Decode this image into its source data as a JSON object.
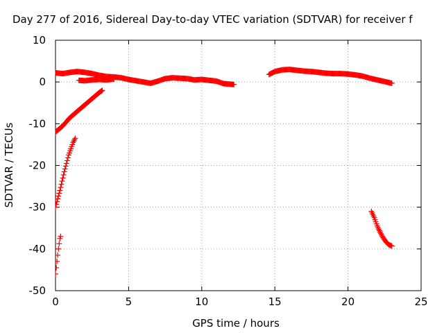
{
  "chart_data": {
    "type": "scatter",
    "title": "Day 277 of 2016, Sidereal Day-to-day VTEC variation (SDTVAR) for receiver f",
    "xlabel": "GPS time / hours",
    "ylabel": "SDTVAR / TECUs",
    "xlim": [
      0,
      25
    ],
    "ylim": [
      -50,
      10
    ],
    "xticks": [
      0,
      5,
      10,
      15,
      20,
      25
    ],
    "yticks": [
      -50,
      -40,
      -30,
      -20,
      -10,
      0,
      10
    ],
    "grid": true,
    "marker": "plus",
    "color": "#ff0000",
    "series": [
      {
        "segments": [
          [
            [
              0.0,
              2.2
            ],
            [
              0.5,
              2.0
            ],
            [
              1.0,
              2.3
            ],
            [
              1.5,
              2.5
            ],
            [
              2.0,
              2.3
            ],
            [
              2.5,
              2.0
            ],
            [
              3.0,
              1.6
            ],
            [
              3.5,
              1.3
            ],
            [
              4.0,
              1.2
            ],
            [
              4.5,
              1.0
            ],
            [
              5.0,
              0.6
            ],
            [
              5.5,
              0.3
            ],
            [
              6.0,
              0.0
            ],
            [
              6.5,
              -0.3
            ],
            [
              7.0,
              0.2
            ],
            [
              7.5,
              0.8
            ],
            [
              8.0,
              1.0
            ],
            [
              8.5,
              0.9
            ],
            [
              9.0,
              0.8
            ],
            [
              9.5,
              0.5
            ],
            [
              10.0,
              0.6
            ],
            [
              10.5,
              0.4
            ],
            [
              11.0,
              0.2
            ],
            [
              11.5,
              -0.4
            ],
            [
              12.2,
              -0.6
            ]
          ],
          [
            [
              1.6,
              0.4
            ],
            [
              2.0,
              0.3
            ],
            [
              2.5,
              0.5
            ],
            [
              3.0,
              0.6
            ],
            [
              3.5,
              0.5
            ],
            [
              4.0,
              0.7
            ]
          ],
          [
            [
              0.0,
              -12.0
            ],
            [
              0.5,
              -10.5
            ],
            [
              1.0,
              -8.5
            ],
            [
              1.5,
              -7.0
            ],
            [
              2.0,
              -5.5
            ],
            [
              2.5,
              -4.0
            ],
            [
              3.0,
              -2.5
            ],
            [
              3.2,
              -2.0
            ]
          ],
          [
            [
              0.0,
              -30.0
            ],
            [
              0.3,
              -26.0
            ],
            [
              0.6,
              -21.5
            ],
            [
              0.9,
              -17.5
            ],
            [
              1.2,
              -14.5
            ],
            [
              1.35,
              -13.5
            ]
          ],
          [
            [
              0.0,
              -46.0
            ],
            [
              0.1,
              -43.0
            ],
            [
              0.2,
              -40.0
            ],
            [
              0.3,
              -37.5
            ],
            [
              0.35,
              -37.0
            ]
          ],
          [
            [
              14.6,
              1.8
            ],
            [
              15.0,
              2.5
            ],
            [
              15.5,
              2.9
            ],
            [
              16.0,
              3.0
            ],
            [
              16.5,
              2.8
            ],
            [
              17.0,
              2.6
            ],
            [
              17.5,
              2.5
            ],
            [
              18.0,
              2.3
            ],
            [
              18.5,
              2.1
            ],
            [
              19.0,
              2.0
            ],
            [
              19.5,
              2.0
            ],
            [
              20.0,
              1.9
            ],
            [
              20.5,
              1.7
            ],
            [
              21.0,
              1.4
            ],
            [
              21.5,
              0.9
            ],
            [
              22.0,
              0.5
            ],
            [
              22.5,
              0.1
            ],
            [
              23.0,
              -0.3
            ]
          ],
          [
            [
              21.6,
              -31.0
            ],
            [
              21.8,
              -32.5
            ],
            [
              22.0,
              -34.5
            ],
            [
              22.2,
              -36.0
            ],
            [
              22.4,
              -37.3
            ],
            [
              22.6,
              -38.3
            ],
            [
              22.8,
              -39.0
            ],
            [
              23.0,
              -39.3
            ]
          ]
        ]
      }
    ]
  }
}
